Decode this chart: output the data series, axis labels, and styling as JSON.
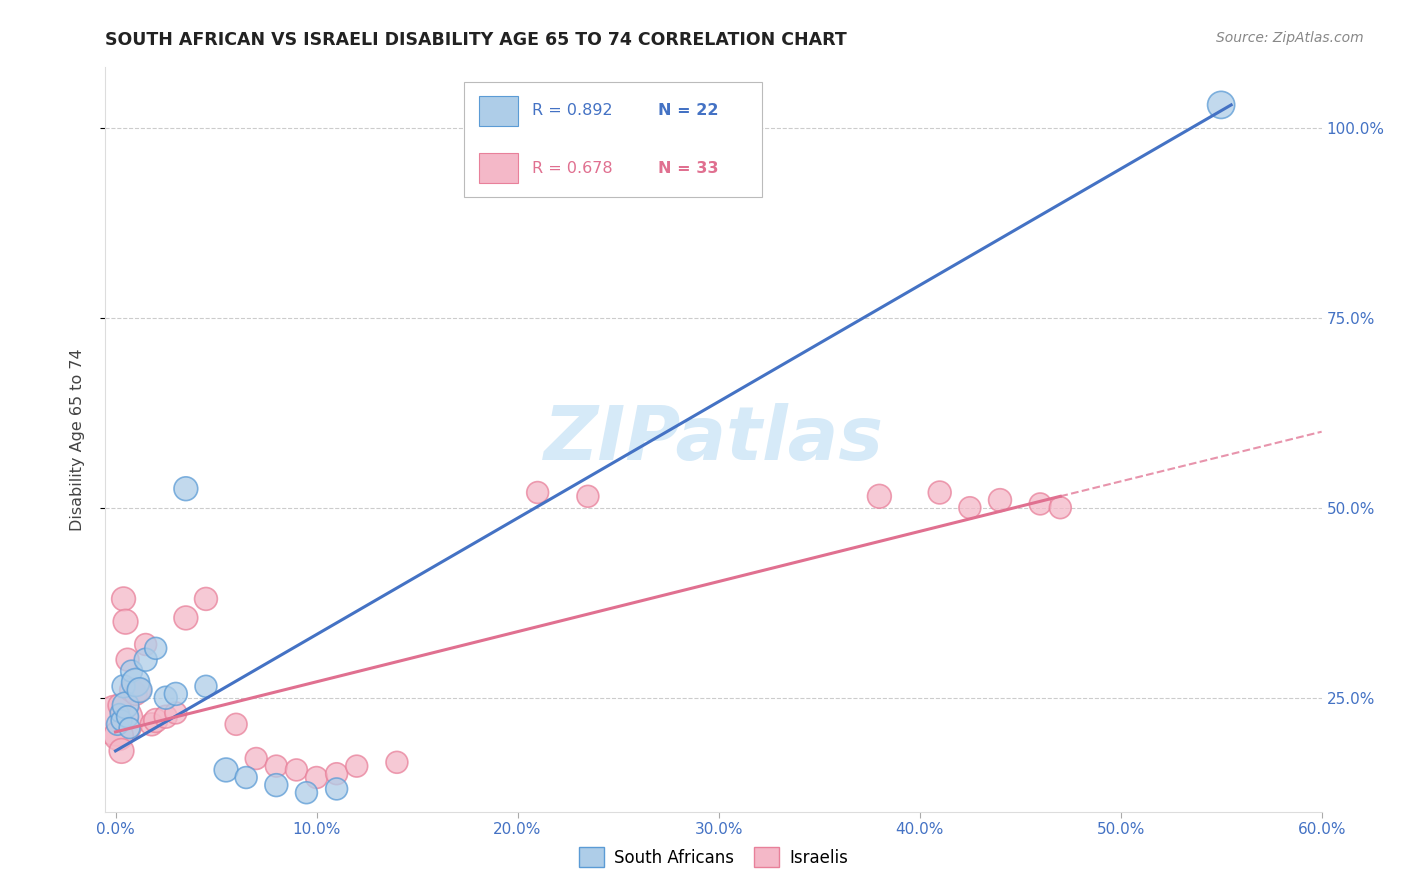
{
  "title": "SOUTH AFRICAN VS ISRAELI DISABILITY AGE 65 TO 74 CORRELATION CHART",
  "source": "Source: ZipAtlas.com",
  "xlabel_vals": [
    0.0,
    10.0,
    20.0,
    30.0,
    40.0,
    50.0,
    60.0
  ],
  "ylabel_vals": [
    25.0,
    50.0,
    75.0,
    100.0
  ],
  "xlim": [
    -0.5,
    60.0
  ],
  "ylim": [
    10.0,
    108.0
  ],
  "blue_fill": "#aecde8",
  "blue_edge": "#5b9bd5",
  "blue_line": "#4472c4",
  "pink_fill": "#f4b8c8",
  "pink_edge": "#e8809a",
  "pink_line": "#e07090",
  "watermark_color": "#d6eaf8",
  "legend_R_blue": "R = 0.892",
  "legend_N_blue": "N = 22",
  "legend_R_pink": "R = 0.678",
  "legend_N_pink": "N = 33",
  "legend_label_blue": "South Africans",
  "legend_label_pink": "Israelis",
  "sa_x": [
    0.1,
    0.2,
    0.3,
    0.4,
    0.5,
    0.6,
    0.7,
    0.8,
    1.0,
    1.2,
    1.5,
    2.0,
    2.5,
    3.0,
    3.5,
    4.5,
    5.5,
    6.5,
    8.0,
    9.5,
    11.0,
    55.0
  ],
  "sa_y": [
    21.5,
    23.0,
    22.0,
    26.5,
    24.0,
    22.5,
    21.0,
    28.5,
    27.0,
    26.0,
    30.0,
    31.5,
    25.0,
    25.5,
    52.5,
    26.5,
    15.5,
    14.5,
    13.5,
    12.5,
    13.0,
    103.0
  ],
  "sa_sizes": [
    55,
    40,
    50,
    60,
    80,
    55,
    50,
    55,
    90,
    70,
    60,
    55,
    60,
    60,
    65,
    55,
    65,
    55,
    60,
    55,
    55,
    85
  ],
  "il_x": [
    0.1,
    0.15,
    0.2,
    0.3,
    0.4,
    0.5,
    0.6,
    0.8,
    1.0,
    1.2,
    1.5,
    1.8,
    2.0,
    2.5,
    3.0,
    3.5,
    4.5,
    6.0,
    7.0,
    8.0,
    9.0,
    10.0,
    11.0,
    12.0,
    14.0,
    21.0,
    23.5,
    38.0,
    41.0,
    42.5,
    44.0,
    46.0,
    47.0
  ],
  "il_y": [
    22.0,
    20.0,
    24.0,
    18.0,
    38.0,
    35.0,
    30.0,
    26.0,
    25.5,
    26.0,
    32.0,
    21.5,
    22.0,
    22.5,
    23.0,
    35.5,
    38.0,
    21.5,
    17.0,
    16.0,
    15.5,
    14.5,
    15.0,
    16.0,
    16.5,
    52.0,
    51.5,
    51.5,
    52.0,
    50.0,
    51.0,
    50.5,
    50.0
  ],
  "il_sizes": [
    300,
    100,
    60,
    70,
    65,
    70,
    60,
    65,
    60,
    60,
    55,
    60,
    65,
    60,
    55,
    65,
    60,
    55,
    55,
    55,
    55,
    55,
    55,
    55,
    55,
    55,
    55,
    65,
    60,
    55,
    60,
    55,
    55
  ],
  "blue_reg_x0": 0.0,
  "blue_reg_y0": 18.0,
  "blue_reg_x1": 55.5,
  "blue_reg_y1": 103.0,
  "pink_reg_solid_x0": 0.0,
  "pink_reg_solid_y0": 20.5,
  "pink_reg_solid_x1": 47.0,
  "pink_reg_solid_y1": 51.5,
  "pink_reg_dash_x0": 47.0,
  "pink_reg_dash_y0": 51.5,
  "pink_reg_dash_x1": 60.0,
  "pink_reg_dash_y1": 60.0
}
